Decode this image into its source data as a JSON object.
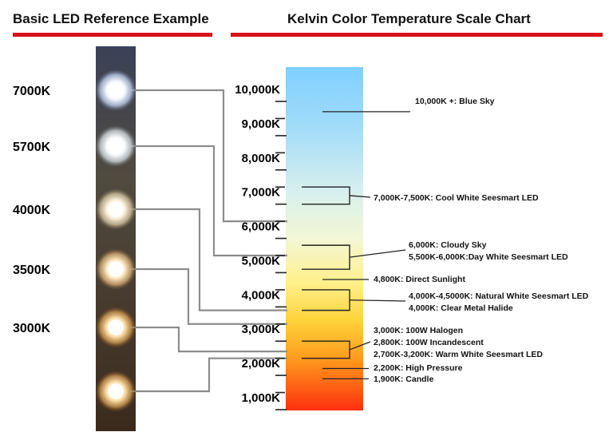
{
  "headings": {
    "left": "Basic LED Reference Example",
    "right": "Kelvin Color Temperature Scale Chart"
  },
  "colors": {
    "accent_red": "#d8121c",
    "scale_top": "#7ecfff",
    "scale_bottom": "#ff3010",
    "connector_gray": "#8c8c8c"
  },
  "led_strip": [
    {
      "label": "7000K",
      "kelvin": 7000,
      "points_to_kelvin": 6500
    },
    {
      "label": "5700K",
      "kelvin": 5700,
      "points_to_kelvin": 5500
    },
    {
      "label": "4000K",
      "kelvin": 4000,
      "points_to_kelvin": 3900
    },
    {
      "label": "3500K",
      "kelvin": 3500,
      "points_to_kelvin": 3500
    },
    {
      "label": "3000K",
      "kelvin": 3000,
      "points_to_kelvin": 2700
    },
    {
      "label": "",
      "kelvin": 2700,
      "points_to_kelvin": 2500
    }
  ],
  "scale": {
    "min": 1000,
    "max": 10000,
    "labels": [
      "10,000K",
      "9,000K",
      "8,000K",
      "7,000K",
      "6,000K",
      "5,000K",
      "4,000K",
      "3,000K",
      "2,000K",
      "1,000K"
    ]
  },
  "annotations": [
    {
      "text": "10,000K +: Blue Sky",
      "kelvin": [
        9700
      ]
    },
    {
      "text": "7,000K-7,500K: Cool White Seesmart LED",
      "kelvin": [
        7500,
        7000
      ]
    },
    {
      "text": "6,000K: Cloudy Sky",
      "kelvin": [
        5800,
        5100
      ]
    },
    {
      "text": "5,500K-6,000K:Day White Seesmart LED",
      "kelvin": []
    },
    {
      "text": "4,800K: Direct Sunlight",
      "kelvin": [
        4800
      ]
    },
    {
      "text": "4,000K-4,5000K: Natural White Seesmart LED",
      "kelvin": [
        4500,
        3900
      ]
    },
    {
      "text": "4,000K: Clear Metal Halide",
      "kelvin": []
    },
    {
      "text": "3,000K: 100W Halogen",
      "kelvin": [
        3000,
        2500
      ]
    },
    {
      "text": "2,800K: 100W Incandescent",
      "kelvin": []
    },
    {
      "text": "2,700K-3,200K: Warm White Seesmart LED",
      "kelvin": []
    },
    {
      "text": "2,200K: High Pressure",
      "kelvin": [
        2200
      ]
    },
    {
      "text": "1,900K: Candle",
      "kelvin": [
        1900
      ]
    }
  ]
}
